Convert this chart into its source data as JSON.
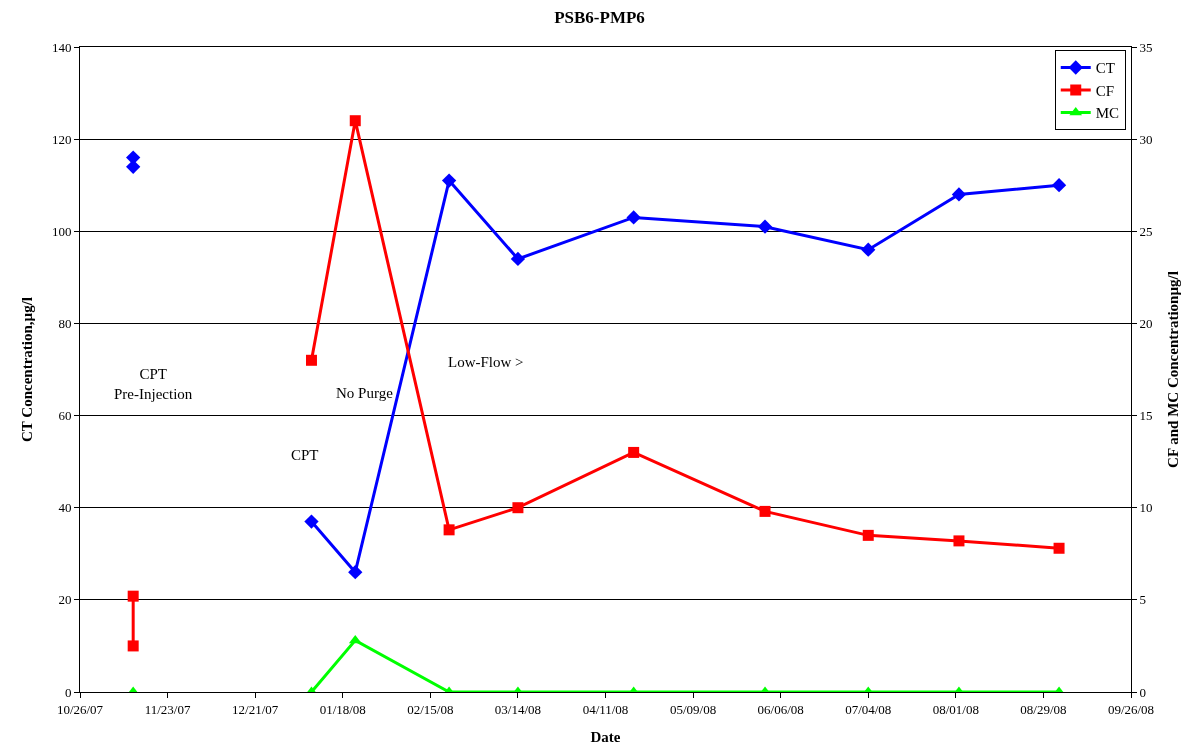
{
  "chart_data": {
    "type": "line",
    "title": "PSB6-PMP6",
    "xlabel": "Date",
    "ylabel": "CT Concentration,µg/l",
    "y2label": "CF and MC Concentrationµg/l",
    "series": [
      {
        "name": "CT",
        "color": "#0000ff",
        "marker": "diamond",
        "x": [
          "2007-11-12",
          null,
          "2007-11-12",
          null,
          "2008-01-08",
          "2008-01-22",
          "2008-02-21",
          "2008-03-14",
          "2008-04-20",
          "2008-06-01",
          "2008-07-04",
          "2008-08-02",
          "2008-09-03"
        ],
        "values": [
          116,
          null,
          114,
          null,
          37,
          26,
          111,
          94,
          103,
          101,
          96,
          108,
          110
        ]
      },
      {
        "name": "CF",
        "color": "#ff0000",
        "marker": "square",
        "axis": "y2",
        "x": [
          "2007-11-12",
          "2007-11-12",
          null,
          "2008-01-08",
          "2008-01-22",
          "2008-02-21",
          "2008-03-14",
          "2008-04-20",
          "2008-06-01",
          "2008-07-04",
          "2008-08-02",
          "2008-09-03"
        ],
        "values": [
          5.2,
          2.5,
          null,
          18,
          31,
          8.8,
          10,
          13,
          9.8,
          8.5,
          8.2,
          7.8
        ]
      },
      {
        "name": "MC",
        "color": "#00ff00",
        "marker": "triangle",
        "axis": "y2",
        "x": [
          "2007-11-12",
          null,
          "2008-01-08",
          "2008-01-22",
          "2008-02-21",
          "2008-03-14",
          "2008-04-20",
          "2008-06-01",
          "2008-07-04",
          "2008-08-02",
          "2008-09-03"
        ],
        "values": [
          0,
          null,
          0,
          2.8,
          0,
          0,
          0,
          0,
          0,
          0,
          0
        ]
      }
    ],
    "xlim": [
      "2007-10-26",
      "2008-09-26"
    ],
    "xticks": [
      {
        "value": "2007-10-26",
        "label": "10/26/07"
      },
      {
        "value": "2007-11-23",
        "label": "11/23/07"
      },
      {
        "value": "2007-12-21",
        "label": "12/21/07"
      },
      {
        "value": "2008-01-18",
        "label": "01/18/08"
      },
      {
        "value": "2008-02-15",
        "label": "02/15/08"
      },
      {
        "value": "2008-03-14",
        "label": "03/14/08"
      },
      {
        "value": "2008-04-11",
        "label": "04/11/08"
      },
      {
        "value": "2008-05-09",
        "label": "05/09/08"
      },
      {
        "value": "2008-06-06",
        "label": "06/06/08"
      },
      {
        "value": "2008-07-04",
        "label": "07/04/08"
      },
      {
        "value": "2008-08-01",
        "label": "08/01/08"
      },
      {
        "value": "2008-08-29",
        "label": "08/29/08"
      },
      {
        "value": "2008-09-26",
        "label": "09/26/08"
      }
    ],
    "ylim": [
      0,
      140
    ],
    "yticks": [
      0,
      20,
      40,
      60,
      80,
      100,
      120,
      140
    ],
    "y2lim": [
      0,
      35
    ],
    "y2ticks": [
      0,
      5,
      10,
      15,
      20,
      25,
      30,
      35
    ],
    "grid": "y",
    "legend": "top right",
    "line_style": "solid",
    "annotations": [
      "CPT\nPre-Injection",
      "No Purge",
      "CPT",
      "Low-Flow >"
    ]
  }
}
